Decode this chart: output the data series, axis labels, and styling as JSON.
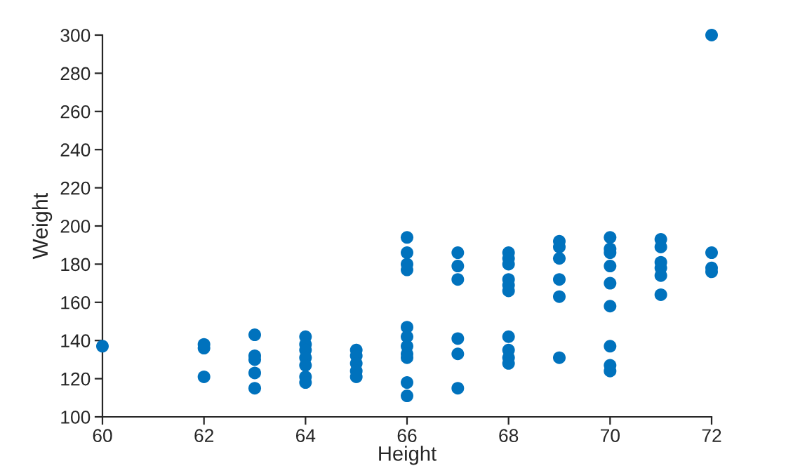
{
  "chart_data": {
    "type": "scatter",
    "xlabel": "Height",
    "ylabel": "Weight",
    "series": [
      {
        "color": "#0072bd",
        "x": [
          60,
          62,
          62,
          62,
          63,
          63,
          63,
          63,
          63,
          64,
          64,
          64,
          64,
          64,
          64,
          64,
          65,
          65,
          65,
          65,
          65,
          66,
          66,
          66,
          66,
          66,
          66,
          66,
          66,
          66,
          66,
          66,
          67,
          67,
          67,
          67,
          67,
          67,
          68,
          68,
          68,
          68,
          68,
          68,
          68,
          68,
          68,
          68,
          69,
          69,
          69,
          69,
          69,
          69,
          70,
          70,
          70,
          70,
          70,
          70,
          70,
          70,
          70,
          71,
          71,
          71,
          71,
          71,
          71,
          72,
          72,
          72,
          72
        ],
        "values": [
          137,
          136,
          138,
          121,
          143,
          132,
          130,
          123,
          115,
          142,
          138,
          135,
          131,
          127,
          121,
          118,
          135,
          132,
          128,
          124,
          121,
          194,
          186,
          180,
          177,
          147,
          142,
          137,
          133,
          131,
          118,
          111,
          186,
          179,
          172,
          141,
          133,
          115,
          186,
          183,
          180,
          172,
          169,
          166,
          142,
          135,
          131,
          128,
          192,
          189,
          183,
          172,
          163,
          131,
          194,
          188,
          186,
          179,
          170,
          158,
          137,
          127,
          124,
          193,
          189,
          181,
          178,
          174,
          164,
          186,
          178,
          176,
          300
        ]
      }
    ],
    "xlim": [
      60,
      72
    ],
    "xticks": [
      60,
      62,
      64,
      66,
      68,
      70,
      72
    ],
    "ylim": [
      100,
      300
    ],
    "yticks": [
      100,
      120,
      140,
      160,
      180,
      200,
      220,
      240,
      260,
      280,
      300
    ],
    "marker": "circle",
    "grid": false,
    "legend": false
  }
}
